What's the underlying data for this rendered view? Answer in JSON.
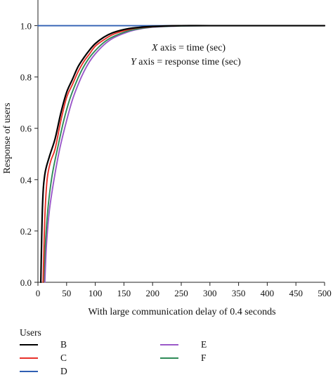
{
  "chart_data": {
    "type": "line",
    "xlabel": "With large communication delay of 0.4 seconds",
    "ylabel": "Response of users",
    "xlim": [
      0,
      500
    ],
    "ylim": [
      0,
      1.1
    ],
    "xticks": [
      0,
      50,
      100,
      150,
      200,
      250,
      300,
      350,
      400,
      450,
      500
    ],
    "xtick_labels": [
      "0",
      "50",
      "100",
      "150",
      "200",
      "250",
      "300",
      "350",
      "400",
      "450",
      "500"
    ],
    "yticks": [
      0,
      0.2,
      0.4,
      0.6,
      0.8,
      1.0
    ],
    "ytick_labels": [
      "0.0",
      "0.2",
      "0.4",
      "0.6",
      "0.8",
      "1.0"
    ],
    "annotations": [
      {
        "var": "X",
        "text": " axis = time (sec)"
      },
      {
        "var": "Y",
        "text": " axis = response time (sec)"
      }
    ],
    "legend": {
      "title": "Users",
      "placement": "bottom"
    },
    "series": [
      {
        "name": "B",
        "color": "#000000",
        "x": [
          5,
          8,
          12,
          20,
          30,
          40,
          50,
          60,
          70,
          80,
          90,
          100,
          115,
          130,
          150,
          170,
          200,
          250,
          300,
          400,
          500
        ],
        "y": [
          0.0,
          0.3,
          0.42,
          0.49,
          0.56,
          0.66,
          0.74,
          0.79,
          0.84,
          0.875,
          0.905,
          0.93,
          0.955,
          0.972,
          0.985,
          0.992,
          0.997,
          1.0,
          1.0,
          1.0,
          1.0
        ]
      },
      {
        "name": "C",
        "color": "#e8312a",
        "x": [
          9,
          12,
          16,
          22,
          30,
          40,
          50,
          60,
          70,
          80,
          90,
          100,
          115,
          130,
          150,
          170,
          200,
          250,
          300,
          400,
          500
        ],
        "y": [
          0.0,
          0.25,
          0.4,
          0.47,
          0.52,
          0.63,
          0.72,
          0.77,
          0.82,
          0.86,
          0.89,
          0.92,
          0.945,
          0.965,
          0.98,
          0.99,
          0.996,
          1.0,
          1.0,
          1.0,
          1.0
        ]
      },
      {
        "name": "D",
        "color": "#2f5fb3",
        "x": [
          0,
          500
        ],
        "y": [
          1.0,
          1.0
        ]
      },
      {
        "name": "E",
        "color": "#9b59c9",
        "x": [
          12,
          15,
          20,
          28,
          38,
          50,
          60,
          70,
          80,
          90,
          100,
          115,
          130,
          150,
          170,
          200,
          250,
          300,
          400,
          500
        ],
        "y": [
          0.0,
          0.15,
          0.28,
          0.4,
          0.52,
          0.63,
          0.71,
          0.77,
          0.82,
          0.86,
          0.89,
          0.925,
          0.95,
          0.97,
          0.984,
          0.994,
          0.999,
          1.0,
          1.0,
          1.0
        ]
      },
      {
        "name": "F",
        "color": "#2e8b57",
        "x": [
          10,
          13,
          18,
          25,
          35,
          45,
          55,
          65,
          75,
          85,
          95,
          110,
          125,
          145,
          165,
          200,
          250,
          300,
          400,
          500
        ],
        "y": [
          0.0,
          0.15,
          0.3,
          0.42,
          0.53,
          0.63,
          0.71,
          0.77,
          0.82,
          0.86,
          0.89,
          0.925,
          0.95,
          0.97,
          0.984,
          0.995,
          0.999,
          1.0,
          1.0,
          1.0
        ]
      }
    ]
  }
}
